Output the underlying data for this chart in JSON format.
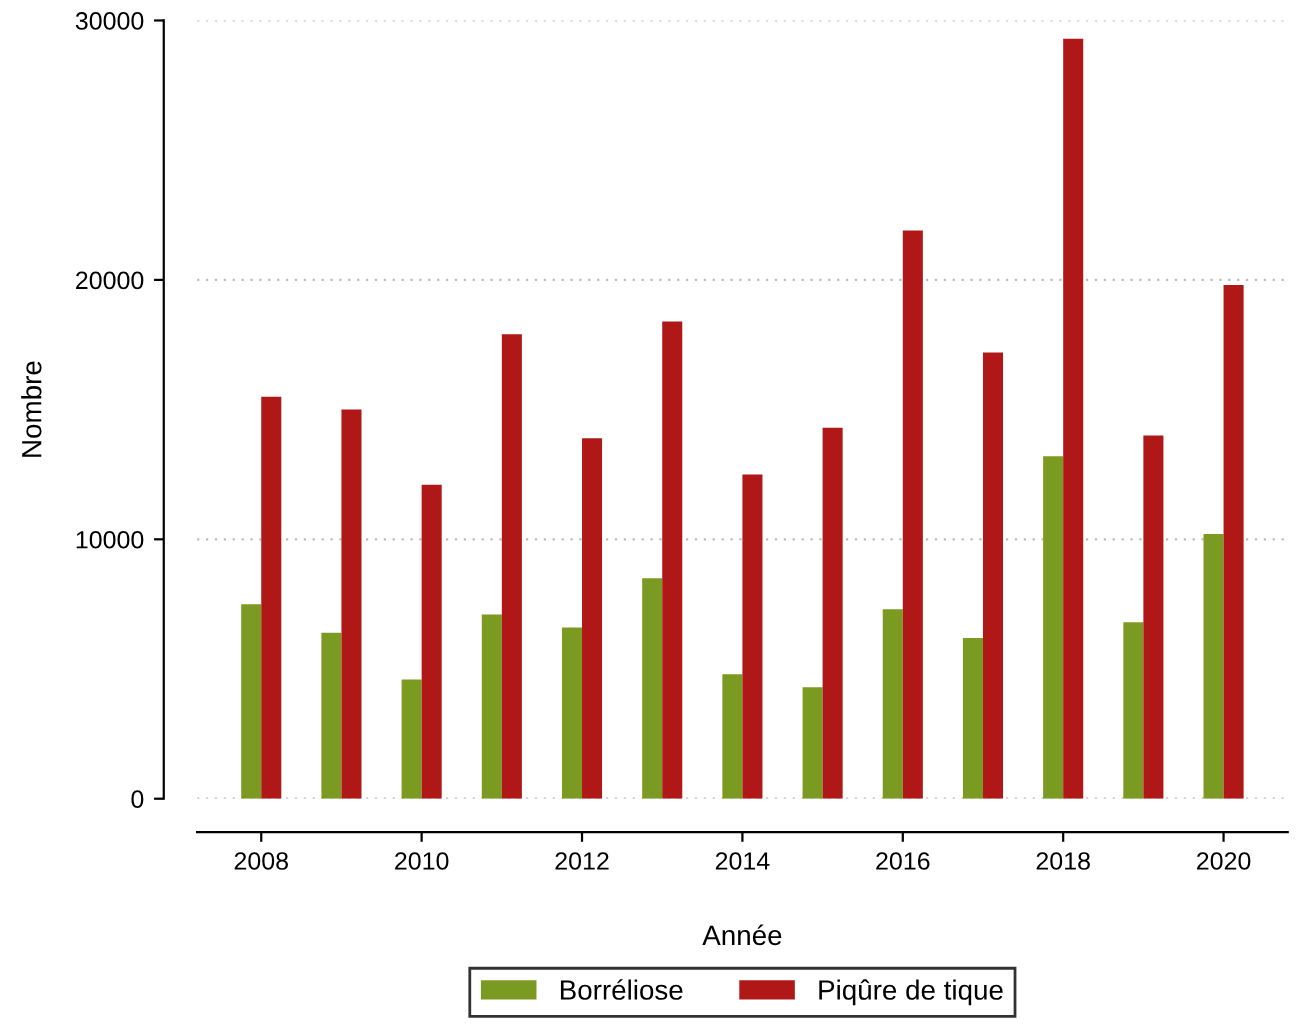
{
  "chart_data": {
    "type": "bar",
    "xlabel": "Année",
    "ylabel": "Nombre",
    "categories": [
      "2008",
      null,
      "2010",
      null,
      "2012",
      null,
      "2014",
      null,
      "2016",
      null,
      "2018",
      null,
      "2020"
    ],
    "series": [
      {
        "name": "Borréliose",
        "color": "#7a9a22",
        "values": [
          7500,
          6400,
          4600,
          7100,
          6600,
          8500,
          4800,
          4300,
          7300,
          6200,
          13200,
          6800,
          10200
        ]
      },
      {
        "name": "Piqûre de tique",
        "color": "#b01717",
        "values": [
          15500,
          15000,
          12100,
          17900,
          13900,
          18400,
          12500,
          14300,
          21900,
          17200,
          29300,
          14000,
          19800
        ]
      }
    ],
    "ylim": [
      0,
      30000
    ],
    "yticks": [
      0,
      10000,
      20000,
      30000
    ],
    "grid": "y",
    "legend": "bottom"
  }
}
